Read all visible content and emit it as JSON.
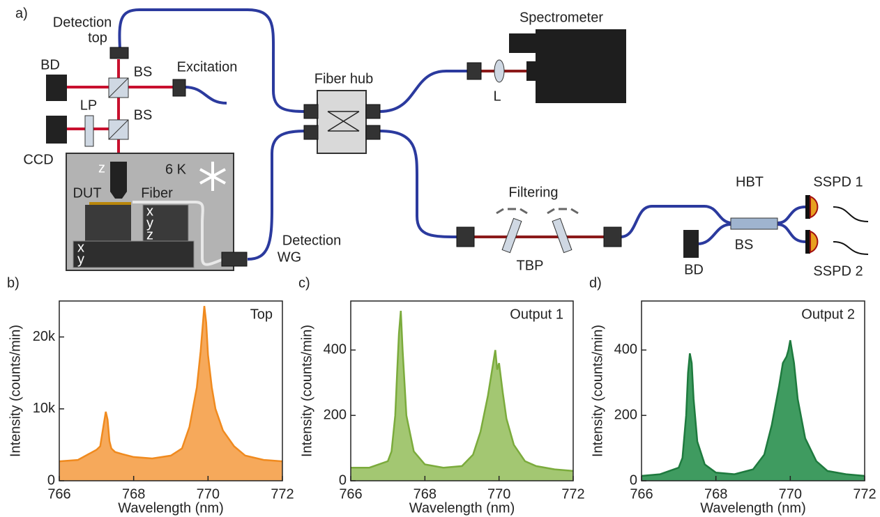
{
  "diagram": {
    "labels": [
      "a)",
      "Detection",
      "top",
      "BD",
      "BS",
      "Excitation",
      "LP",
      "BS",
      "CCD",
      "z",
      "6 K",
      "DUT",
      "Fiber",
      "x",
      "y",
      "z",
      "x",
      "y",
      "Detection",
      "WG",
      "Fiber hub",
      "Spectrometer",
      "L",
      "Filtering",
      "TBP",
      "HBT",
      "BS",
      "BD",
      "SSPD 1",
      "SSPD 2"
    ]
  },
  "chart_data": [
    {
      "type": "area",
      "panel": "b)",
      "annotation": "Top",
      "xlabel": "Wavelength (nm)",
      "ylabel": "Intensity (counts/min)",
      "x": [
        766,
        766.5,
        767.0,
        767.1,
        767.2,
        767.25,
        767.3,
        767.35,
        767.4,
        767.5,
        767.7,
        768,
        768.5,
        769,
        769.3,
        769.5,
        769.7,
        769.8,
        769.9,
        769.95,
        770.0,
        770.1,
        770.2,
        770.4,
        770.7,
        771,
        771.5,
        772
      ],
      "values": [
        2700,
        2900,
        4300,
        4800,
        8000,
        9600,
        8500,
        5500,
        4500,
        4000,
        3700,
        3300,
        3100,
        3500,
        4500,
        7500,
        13000,
        18000,
        24300,
        22000,
        17500,
        13000,
        10000,
        7000,
        4800,
        3500,
        2900,
        2700
      ],
      "color": "#f08a1e",
      "fill": "#f6a95b",
      "xlim": [
        766,
        772
      ],
      "xticks": [
        766,
        768,
        770,
        772
      ],
      "ylim": [
        0,
        25000
      ],
      "yticks": [
        0,
        {
          "value": 10000,
          "label": "10k"
        },
        {
          "value": 20000,
          "label": "20k"
        }
      ]
    },
    {
      "type": "area",
      "panel": "c)",
      "annotation": "Output 1",
      "xlabel": "Wavelength (nm)",
      "ylabel": "Intensity (counts/min)",
      "x": [
        766,
        766.5,
        767.0,
        767.1,
        767.2,
        767.25,
        767.3,
        767.35,
        767.4,
        767.5,
        767.7,
        768,
        768.5,
        769,
        769.3,
        769.5,
        769.7,
        769.8,
        769.9,
        769.95,
        770.0,
        770.1,
        770.2,
        770.4,
        770.7,
        771,
        771.5,
        772
      ],
      "values": [
        40,
        40,
        60,
        90,
        200,
        330,
        450,
        520,
        400,
        200,
        90,
        50,
        40,
        45,
        80,
        150,
        260,
        330,
        400,
        340,
        360,
        270,
        190,
        110,
        60,
        45,
        35,
        30
      ],
      "color": "#7bab3c",
      "fill": "#a3c772",
      "xlim": [
        766,
        772
      ],
      "xticks": [
        766,
        768,
        770,
        772
      ],
      "ylim": [
        0,
        550
      ],
      "yticks": [
        0,
        200,
        400
      ]
    },
    {
      "type": "area",
      "panel": "d)",
      "annotation": "Output 2",
      "xlabel": "Wavelength (nm)",
      "ylabel": "Intensity (counts/min)",
      "x": [
        766,
        766.5,
        767.0,
        767.1,
        767.2,
        767.25,
        767.3,
        767.35,
        767.4,
        767.5,
        767.7,
        768,
        768.5,
        769,
        769.3,
        769.5,
        769.7,
        769.8,
        769.9,
        769.95,
        770.0,
        770.1,
        770.2,
        770.4,
        770.7,
        771,
        771.5,
        772
      ],
      "values": [
        15,
        20,
        40,
        70,
        200,
        330,
        390,
        360,
        250,
        120,
        50,
        25,
        20,
        35,
        80,
        170,
        290,
        360,
        380,
        400,
        430,
        360,
        250,
        130,
        60,
        30,
        20,
        15
      ],
      "color": "#1e7a3e",
      "fill": "#3f9b60",
      "xlim": [
        766,
        772
      ],
      "xticks": [
        766,
        768,
        770,
        772
      ],
      "ylim": [
        0,
        550
      ],
      "yticks": [
        0,
        200,
        400
      ]
    }
  ]
}
